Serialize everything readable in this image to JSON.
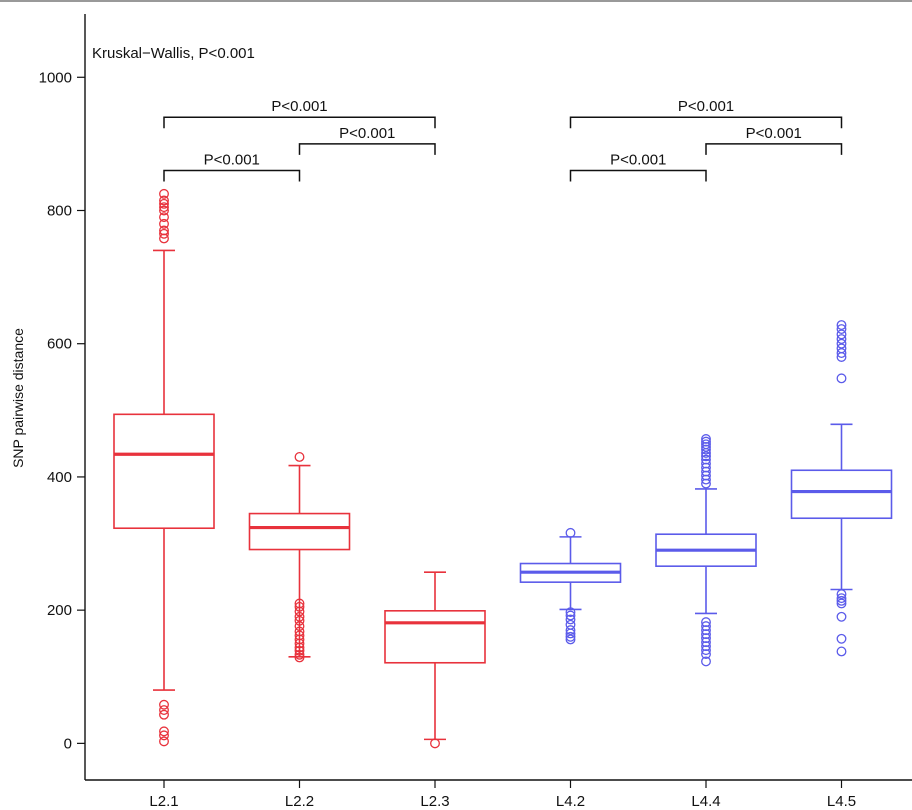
{
  "chart_data": {
    "type": "box",
    "title": "",
    "xlabel": "",
    "ylabel": "SNP pairwise distance",
    "ylim": [
      -55,
      1095
    ],
    "yticks": [
      0,
      200,
      400,
      600,
      800,
      1000
    ],
    "categories": [
      "L2.1",
      "L2.2",
      "L2.3",
      "L4.2",
      "L4.4",
      "L4.5"
    ],
    "colors": [
      "#e8323c",
      "#e8323c",
      "#e8323c",
      "#5b5bea",
      "#5b5bea",
      "#5b5bea"
    ],
    "boxes": [
      {
        "category": "L2.1",
        "whisker_low": 80,
        "q1": 323,
        "median": 434,
        "q3": 494,
        "whisker_high": 740,
        "outliers": [
          825,
          815,
          810,
          805,
          800,
          790,
          780,
          770,
          765,
          758,
          58,
          50,
          43,
          18,
          12,
          3
        ]
      },
      {
        "category": "L2.2",
        "whisker_low": 130,
        "q1": 291,
        "median": 324,
        "q3": 345,
        "whisker_high": 417,
        "outliers": [
          430,
          210,
          205,
          198,
          190,
          184,
          176,
          168,
          162,
          156,
          150,
          144,
          139,
          133,
          129
        ]
      },
      {
        "category": "L2.3",
        "whisker_low": 6,
        "q1": 121,
        "median": 181,
        "q3": 199,
        "whisker_high": 257,
        "outliers": [
          0
        ]
      },
      {
        "category": "L4.2",
        "whisker_low": 201,
        "q1": 242,
        "median": 257,
        "q3": 270,
        "whisker_high": 310,
        "outliers": [
          316,
          197,
          192,
          186,
          178,
          170,
          165,
          160,
          156
        ]
      },
      {
        "category": "L4.4",
        "whisker_low": 195,
        "q1": 266,
        "median": 290,
        "q3": 314,
        "whisker_high": 382,
        "outliers": [
          457,
          453,
          449,
          445,
          441,
          436,
          431,
          426,
          420,
          414,
          408,
          402,
          396,
          390,
          182,
          176,
          170,
          164,
          158,
          152,
          146,
          140,
          134,
          123
        ]
      },
      {
        "category": "L4.5",
        "whisker_low": 231,
        "q1": 338,
        "median": 378,
        "q3": 410,
        "whisker_high": 479,
        "outliers": [
          628,
          622,
          614,
          607,
          600,
          593,
          586,
          580,
          548,
          224,
          218,
          214,
          210,
          190,
          157,
          138
        ]
      }
    ],
    "annotations": [
      {
        "text": "Kruskal−Wallis, P<0.001"
      }
    ],
    "comparisons": [
      {
        "from": "L2.1",
        "to": "L2.3",
        "y": 940,
        "text": "P<0.001"
      },
      {
        "from": "L2.2",
        "to": "L2.3",
        "y": 900,
        "text": "P<0.001"
      },
      {
        "from": "L2.1",
        "to": "L2.2",
        "y": 860,
        "text": "P<0.001"
      },
      {
        "from": "L4.2",
        "to": "L4.5",
        "y": 940,
        "text": "P<0.001"
      },
      {
        "from": "L4.4",
        "to": "L4.5",
        "y": 900,
        "text": "P<0.001"
      },
      {
        "from": "L4.2",
        "to": "L4.4",
        "y": 860,
        "text": "P<0.001"
      }
    ],
    "grid": false,
    "legend": "none"
  }
}
